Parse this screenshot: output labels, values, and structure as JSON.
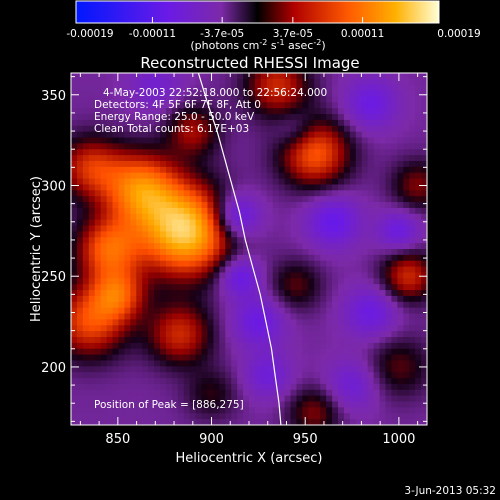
{
  "chart_data": {
    "type": "heatmap",
    "title": "Reconstructed RHESSI Image",
    "xlabel": "Heliocentric X (arcsec)",
    "ylabel": "Heliocentric Y (arcsec)",
    "xlim": [
      825,
      1015
    ],
    "ylim": [
      168,
      362
    ],
    "x_ticks": [
      {
        "value": 850,
        "label": "850"
      },
      {
        "value": 900,
        "label": "900"
      },
      {
        "value": 950,
        "label": "950"
      },
      {
        "value": 1000,
        "label": "1000"
      }
    ],
    "y_ticks": [
      {
        "value": 200,
        "label": "200"
      },
      {
        "value": 250,
        "label": "250"
      },
      {
        "value": 300,
        "label": "300"
      },
      {
        "value": 350,
        "label": "350"
      }
    ],
    "colorbar": {
      "min": -0.00019,
      "max": 0.00019,
      "tick_labels": [
        {
          "value": -0.00019,
          "label": "-0.00019"
        },
        {
          "value": -0.00011,
          "label": "-0.00011"
        },
        {
          "value": -3.7e-05,
          "label": "-3.7e-05"
        },
        {
          "value": 3.7e-05,
          "label": "3.7e-05"
        },
        {
          "value": 0.00011,
          "label": "0.00011"
        },
        {
          "value": 0.00019,
          "label": "0.00019"
        }
      ],
      "unit_prefix": "(photons cm",
      "unit_exp1": "-2",
      "unit_mid": " s",
      "unit_exp2": "-1",
      "unit_mid2": " asec",
      "unit_exp3": "-2",
      "unit_suffix": ")"
    },
    "annotations": {
      "time_range": "4-May-2003 22:52:18.000 to 22:56:24.000",
      "detectors": "Detectors: 4F 5F 6F 7F 8F, Att 0",
      "energy": "Energy Range: 25.0 - 50.0 keV",
      "clean": "Clean     Total counts: 6.17E+03",
      "peak": "Position of Peak = [886,275]"
    },
    "peak": {
      "x": 886,
      "y": 275
    },
    "sources": [
      {
        "x": 886,
        "y": 275,
        "sigma": 17,
        "amp": 1.0
      },
      {
        "x": 862,
        "y": 298,
        "sigma": 14,
        "amp": 0.7
      },
      {
        "x": 845,
        "y": 265,
        "sigma": 12,
        "amp": 0.6
      },
      {
        "x": 835,
        "y": 225,
        "sigma": 14,
        "amp": 0.55
      },
      {
        "x": 850,
        "y": 240,
        "sigma": 10,
        "amp": 0.5
      },
      {
        "x": 883,
        "y": 218,
        "sigma": 12,
        "amp": 0.45
      },
      {
        "x": 835,
        "y": 310,
        "sigma": 12,
        "amp": 0.45
      },
      {
        "x": 890,
        "y": 330,
        "sigma": 10,
        "amp": 0.35
      },
      {
        "x": 955,
        "y": 318,
        "sigma": 13,
        "amp": 0.6
      },
      {
        "x": 935,
        "y": 355,
        "sigma": 12,
        "amp": 0.45
      },
      {
        "x": 1005,
        "y": 250,
        "sigma": 10,
        "amp": 0.45
      },
      {
        "x": 1010,
        "y": 300,
        "sigma": 10,
        "amp": 0.3
      },
      {
        "x": 945,
        "y": 245,
        "sigma": 10,
        "amp": 0.25
      },
      {
        "x": 955,
        "y": 175,
        "sigma": 10,
        "amp": 0.3
      },
      {
        "x": 1000,
        "y": 200,
        "sigma": 12,
        "amp": 0.25
      },
      {
        "x": 900,
        "y": 185,
        "sigma": 10,
        "amp": 0.2
      },
      {
        "x": 913,
        "y": 283,
        "sigma": 9,
        "amp": -0.45
      },
      {
        "x": 915,
        "y": 250,
        "sigma": 8,
        "amp": -0.35
      },
      {
        "x": 925,
        "y": 225,
        "sigma": 10,
        "amp": -0.3
      },
      {
        "x": 965,
        "y": 280,
        "sigma": 10,
        "amp": -0.35
      },
      {
        "x": 985,
        "y": 230,
        "sigma": 10,
        "amp": -0.3
      },
      {
        "x": 1000,
        "y": 275,
        "sigma": 8,
        "amp": -0.3
      },
      {
        "x": 975,
        "y": 190,
        "sigma": 10,
        "amp": -0.25
      },
      {
        "x": 930,
        "y": 195,
        "sigma": 9,
        "amp": -0.25
      },
      {
        "x": 945,
        "y": 330,
        "sigma": 8,
        "amp": -0.2
      },
      {
        "x": 870,
        "y": 355,
        "sigma": 10,
        "amp": -0.2
      },
      {
        "x": 985,
        "y": 345,
        "sigma": 10,
        "amp": -0.3
      }
    ],
    "limb_curve": [
      [
        893,
        362
      ],
      [
        898,
        345
      ],
      [
        903,
        330
      ],
      [
        907,
        315
      ],
      [
        911,
        300
      ],
      [
        915,
        285
      ],
      [
        918,
        270
      ],
      [
        922,
        255
      ],
      [
        926,
        240
      ],
      [
        929,
        225
      ],
      [
        932,
        210
      ],
      [
        934,
        195
      ],
      [
        936,
        180
      ],
      [
        937,
        168
      ]
    ],
    "grid": false,
    "colorbar_position": "top"
  },
  "footer": {
    "date": "3-Jun-2013 05:32"
  }
}
